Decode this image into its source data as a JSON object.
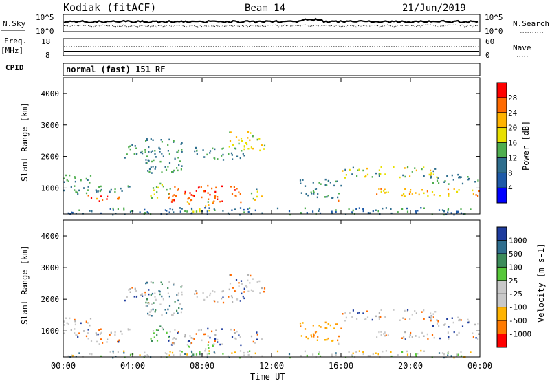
{
  "header": {
    "station": "Kodiak (fitACF)",
    "beam": "Beam 14",
    "date": "21/Jun/2019"
  },
  "top_panels": {
    "nsky_label": "N.Sky",
    "nsky_ticks": [
      "10^5",
      "10^0"
    ],
    "nsearch_label": "N.Search",
    "nsearch_ticks": [
      "10^5",
      "10^0"
    ],
    "freq_label": "Freq.",
    "freq_unit": "[MHz]",
    "freq_ticks": [
      "18",
      "8"
    ],
    "nave_label": "Nave",
    "nave_ticks": [
      "60",
      "0"
    ],
    "cpid_label": "CPID",
    "cpid_value": "normal (fast) 151 RF"
  },
  "chart_data": [
    {
      "type": "heatmap",
      "name": "power",
      "ylabel": "Slant Range [km]",
      "xlabel": "Time UT",
      "x_ticks": [
        "00:00",
        "04:00",
        "08:00",
        "12:00",
        "16:00",
        "20:00",
        "00:00"
      ],
      "x_range_hours": [
        0,
        24
      ],
      "ylim": [
        180,
        4500
      ],
      "y_ticks": [
        1000,
        2000,
        3000,
        4000
      ],
      "colorbar": {
        "label": "Power [dB]",
        "ticks": [
          "28",
          "24",
          "20",
          "16",
          "12",
          "8",
          "4"
        ],
        "colors": [
          "#ff0000",
          "#ff6a00",
          "#ffb300",
          "#e8e000",
          "#4fae4f",
          "#2e6e8e",
          "#1e5aa8",
          "#0000ff"
        ]
      }
    },
    {
      "type": "heatmap",
      "name": "velocity",
      "ylabel": "Slant Range [km]",
      "xlabel": "Time UT",
      "x_ticks": [
        "00:00",
        "04:00",
        "08:00",
        "12:00",
        "16:00",
        "20:00",
        "00:00"
      ],
      "x_range_hours": [
        0,
        24
      ],
      "ylim": [
        180,
        4500
      ],
      "y_ticks": [
        1000,
        2000,
        3000,
        4000
      ],
      "colorbar": {
        "label": "Velocity [m s-1]",
        "ticks": [
          "1000",
          "500",
          "100",
          "25",
          "-25",
          "-100",
          "-500",
          "-1000"
        ],
        "colors": [
          "#1e3c9e",
          "#2e6e8e",
          "#3c8c5a",
          "#57c83a",
          "#c8c8c8",
          "#c8c8c8",
          "#ffb300",
          "#ff7a00",
          "#ff0000"
        ]
      }
    }
  ]
}
